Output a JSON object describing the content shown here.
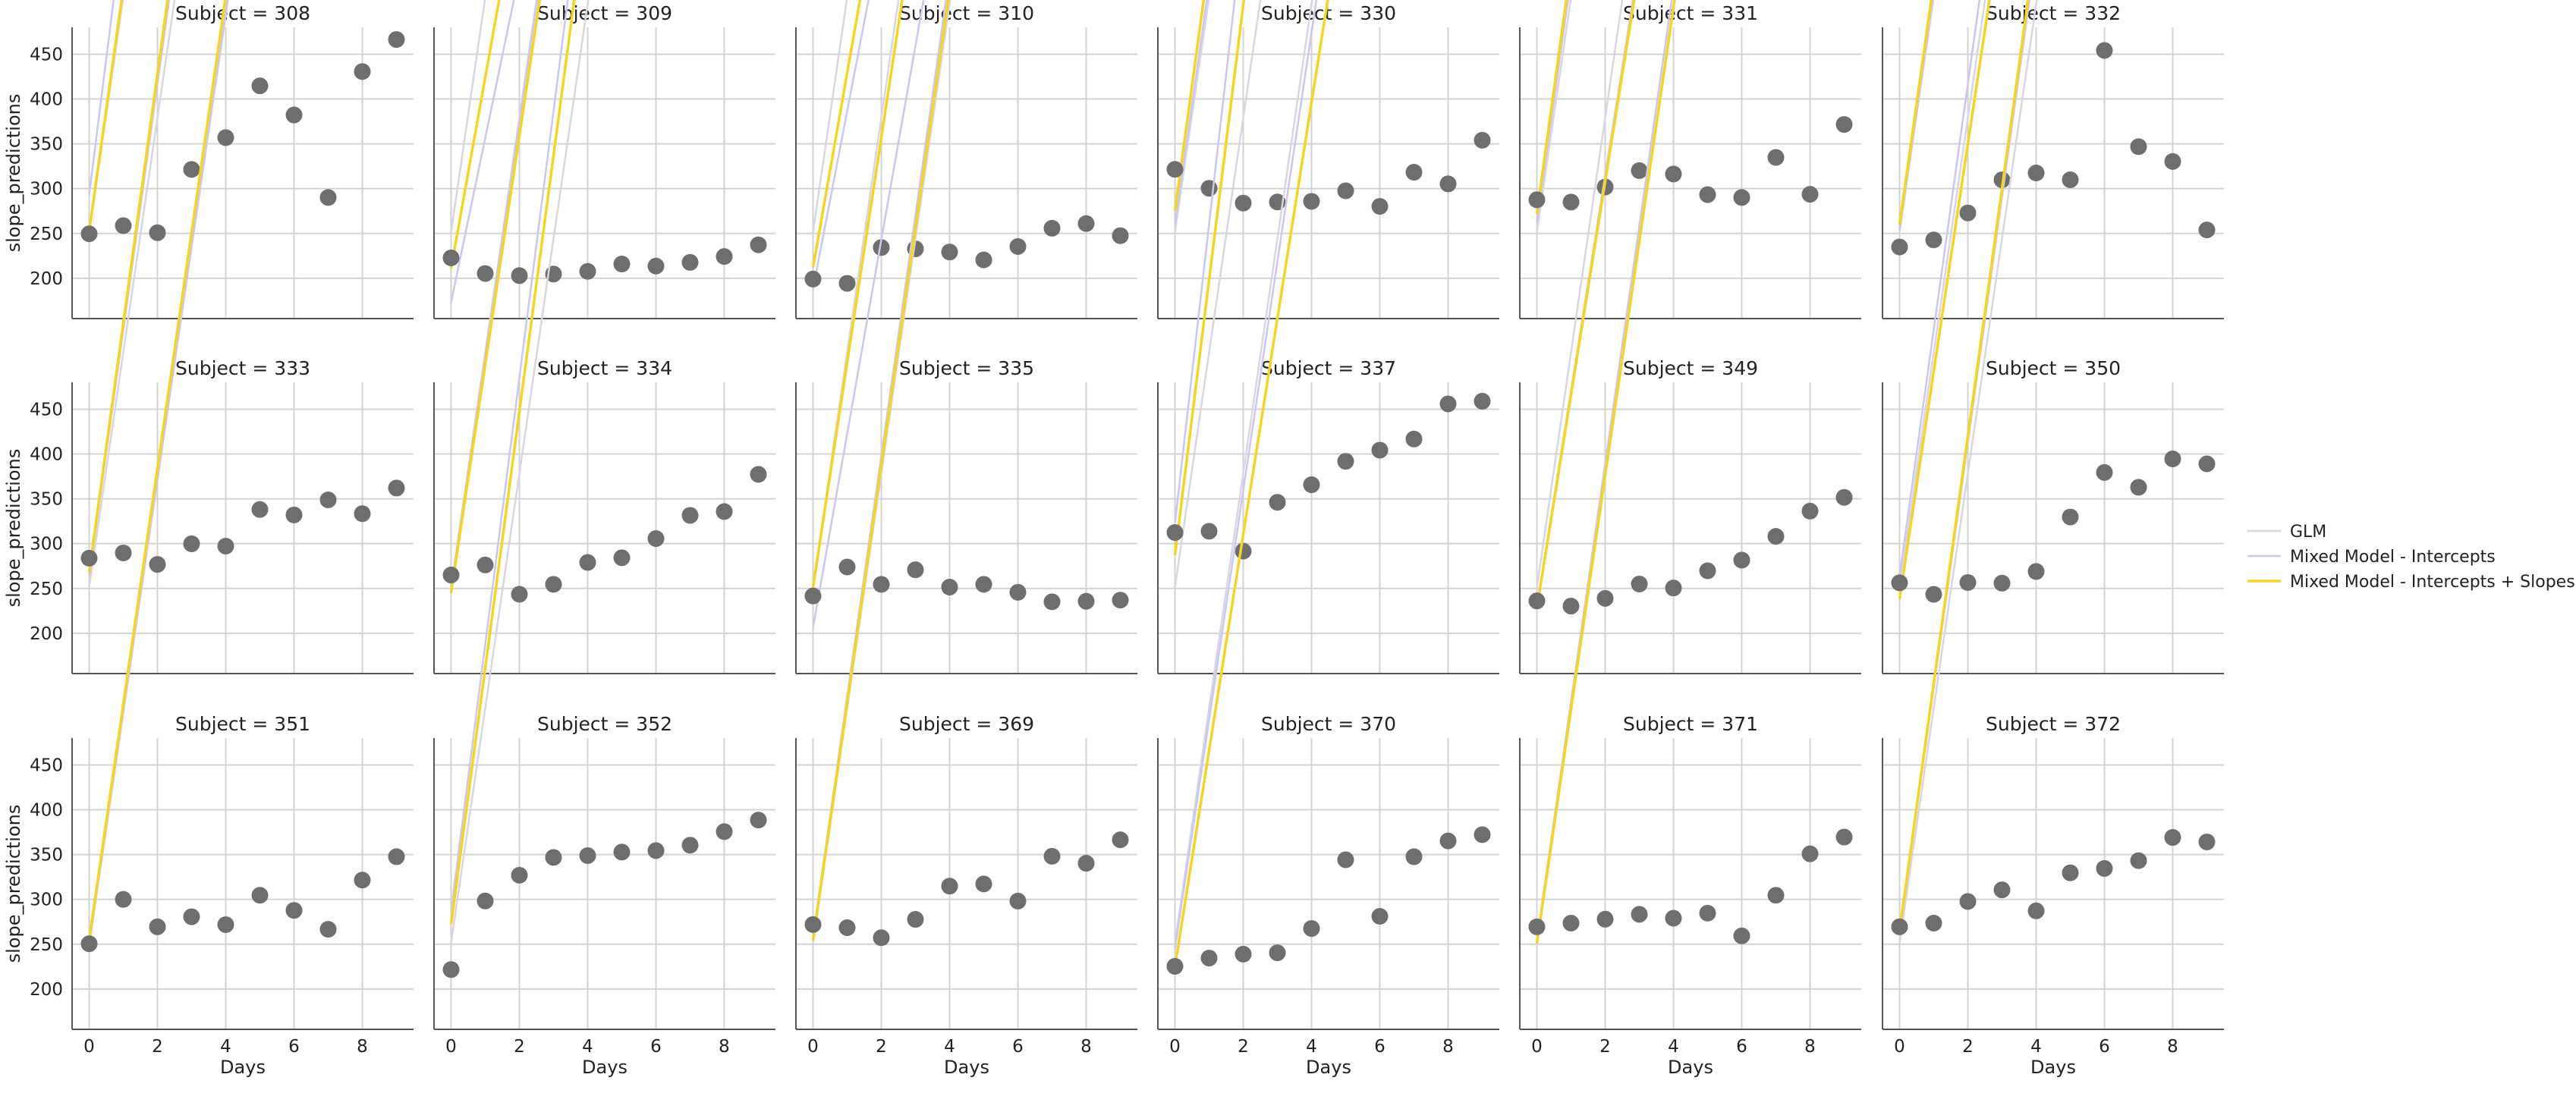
{
  "chart_data": {
    "type": "scatter",
    "panel_title_prefix": "Subject = ",
    "xlabel": "Days",
    "ylabel": "slope_predictions",
    "xlim": [
      -0.5,
      9.5
    ],
    "ylim": [
      155,
      480
    ],
    "xticks": [
      0,
      2,
      4,
      6,
      8
    ],
    "yticks": [
      200,
      250,
      300,
      350,
      400,
      450
    ],
    "grid": true,
    "legend_position": "right",
    "colors": {
      "points": "#6e6e6e",
      "glm": "#d9d5e3",
      "intercepts": "#cbc7ee",
      "slopes": "#f5d327",
      "grid": "#d3d3d3",
      "axis": "#555555"
    },
    "legend": [
      "GLM",
      "Mixed Model - Intercepts",
      "Mixed Model - Intercepts + Slopes"
    ],
    "glm_line": [
      251.4,
      261.9
    ],
    "panels": [
      {
        "subject": "308",
        "points": [
          249.6,
          258.7,
          250.8,
          321.4,
          356.9,
          414.7,
          382.2,
          290.1,
          430.6,
          466.4
        ],
        "intercepts_line": [
          293,
          303.5
        ],
        "slopes_line": [
          252,
          272.0
        ]
      },
      {
        "subject": "309",
        "points": [
          222.7,
          205.3,
          203.0,
          204.7,
          207.7,
          215.9,
          213.6,
          217.7,
          224.3,
          237.3
        ],
        "intercepts_line": [
          173,
          183.5
        ],
        "slopes_line": [
          211,
          213.0
        ]
      },
      {
        "subject": "310",
        "points": [
          199.1,
          194.3,
          234.3,
          232.8,
          229.3,
          220.5,
          235.4,
          255.8,
          261.0,
          247.5
        ],
        "intercepts_line": [
          188,
          198.5
        ],
        "slopes_line": [
          212,
          217.0
        ]
      },
      {
        "subject": "330",
        "points": [
          321.5,
          300.4,
          283.9,
          285.1,
          285.8,
          297.6,
          280.2,
          318.3,
          305.3,
          354.0
        ],
        "intercepts_line": [
          259,
          269.5
        ],
        "slopes_line": [
          275,
          280.0
        ]
      },
      {
        "subject": "331",
        "points": [
          287.6,
          285.0,
          301.8,
          320.1,
          316.3,
          293.3,
          290.1,
          334.8,
          293.7,
          371.6
        ],
        "intercepts_line": [
          262,
          272.5
        ],
        "slopes_line": [
          272,
          277.0
        ]
      },
      {
        "subject": "332",
        "points": [
          234.9,
          242.8,
          272.9,
          309.8,
          317.5,
          309.9,
          454.2,
          346.8,
          330.3,
          253.9
        ],
        "intercepts_line": [
          254,
          264.5
        ],
        "slopes_line": [
          260,
          270.0
        ]
      },
      {
        "subject": "333",
        "points": [
          283.8,
          289.6,
          276.8,
          299.8,
          297.2,
          338.1,
          332.0,
          348.8,
          333.4,
          362.0
        ],
        "intercepts_line": [
          264,
          274.5
        ],
        "slopes_line": [
          268,
          278.0
        ]
      },
      {
        "subject": "334",
        "points": [
          265.0,
          276.2,
          243.5,
          254.6,
          279.0,
          284.2,
          305.6,
          331.5,
          335.8,
          377.3
        ],
        "intercepts_line": [
          250,
          260.5
        ],
        "slopes_line": [
          245,
          255.0
        ]
      },
      {
        "subject": "335",
        "points": [
          241.6,
          273.9,
          254.5,
          270.8,
          251.5,
          254.6,
          245.7,
          235.1,
          235.7,
          237.0
        ],
        "intercepts_line": [
          206,
          216.5
        ],
        "slopes_line": [
          251,
          251.0
        ]
      },
      {
        "subject": "337",
        "points": [
          312.4,
          313.8,
          291.6,
          346.1,
          365.7,
          391.8,
          404.3,
          416.7,
          455.9,
          458.9
        ],
        "intercepts_line": [
          323,
          333.5
        ],
        "slopes_line": [
          287,
          307.0
        ]
      },
      {
        "subject": "349",
        "points": [
          236.1,
          230.3,
          238.9,
          254.9,
          250.5,
          269.7,
          281.6,
          308.1,
          336.3,
          351.6
        ],
        "intercepts_line": [
          230,
          240.5
        ],
        "slopes_line": [
          228,
          238.0
        ]
      },
      {
        "subject": "350",
        "points": [
          256.3,
          243.4,
          256.6,
          255.9,
          268.9,
          329.7,
          379.4,
          362.9,
          394.5,
          389.0
        ],
        "intercepts_line": [
          264,
          274.5
        ],
        "slopes_line": [
          238,
          254.0
        ]
      },
      {
        "subject": "351",
        "points": [
          250.5,
          300.0,
          269.4,
          280.6,
          271.8,
          304.6,
          287.7,
          266.6,
          321.5,
          347.6
        ],
        "intercepts_line": [
          249,
          259.5
        ],
        "slopes_line": [
          255,
          263.0
        ]
      },
      {
        "subject": "352",
        "points": [
          221.7,
          298.2,
          326.9,
          346.8,
          348.8,
          352.8,
          354.4,
          360.5,
          375.6,
          388.5
        ],
        "intercepts_line": [
          287,
          297.5
        ],
        "slopes_line": [
          272,
          286.0
        ]
      },
      {
        "subject": "369",
        "points": [
          271.9,
          268.4,
          257.2,
          277.7,
          314.8,
          317.2,
          298.1,
          348.1,
          340.3,
          366.5
        ],
        "intercepts_line": [
          258,
          268.5
        ],
        "slopes_line": [
          254,
          265.0
        ]
      },
      {
        "subject": "370",
        "points": [
          225.3,
          234.5,
          238.9,
          240.4,
          267.5,
          344.2,
          281.1,
          347.6,
          365.2,
          372.2
        ],
        "intercepts_line": [
          245,
          255.5
        ],
        "slopes_line": [
          225,
          241.0
        ]
      },
      {
        "subject": "371",
        "points": [
          269.4,
          273.5,
          277.9,
          283.3,
          279.0,
          284.6,
          259.3,
          304.6,
          350.8,
          369.5
        ],
        "intercepts_line": [
          255,
          265.5
        ],
        "slopes_line": [
          251,
          261.0
        ]
      },
      {
        "subject": "372",
        "points": [
          269.4,
          273.5,
          297.6,
          310.6,
          287.2,
          329.6,
          334.5,
          343.2,
          369.1,
          364.1
        ],
        "intercepts_line": [
          263,
          273.5
        ],
        "slopes_line": [
          265,
          276.0
        ]
      }
    ]
  }
}
